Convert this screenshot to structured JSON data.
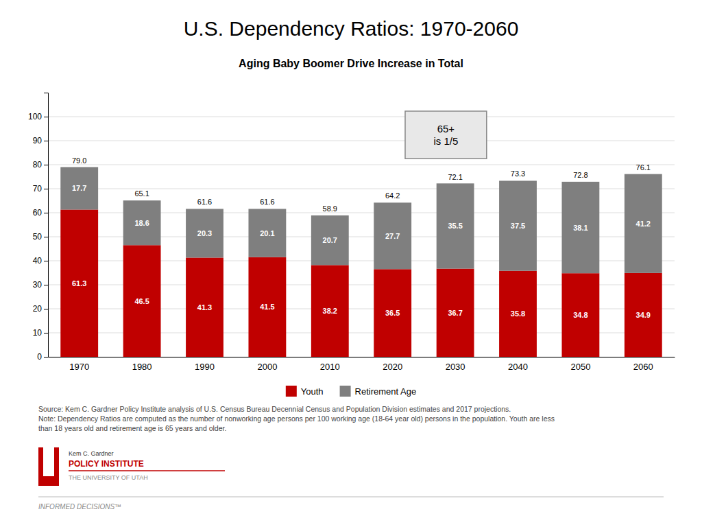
{
  "chart_data": {
    "type": "bar",
    "stacked": true,
    "title": "U.S. Dependency Ratios: 1970-2060",
    "subtitle": "Aging Baby Boomer Drive Increase in Total",
    "categories": [
      "1970",
      "1980",
      "1990",
      "2000",
      "2010",
      "2020",
      "2030",
      "2040",
      "2050",
      "2060"
    ],
    "series": [
      {
        "name": "Youth",
        "color": "#C00000",
        "values": [
          61.3,
          46.5,
          41.3,
          41.5,
          38.2,
          36.5,
          36.7,
          35.8,
          34.8,
          34.9
        ]
      },
      {
        "name": "Retirement Age",
        "color": "#7F7F7F",
        "values": [
          17.7,
          18.6,
          20.3,
          20.1,
          20.7,
          27.7,
          35.5,
          37.5,
          38.1,
          41.2
        ]
      }
    ],
    "totals": {
      "values": [
        79.0,
        65.1,
        61.6,
        61.6,
        58.9,
        64.2,
        72.1,
        73.3,
        72.8,
        76.1
      ],
      "value_labels": [
        "79.0",
        "65.1",
        "61.6",
        "61.6",
        "58.9",
        "64.2",
        "72.1",
        "73.3",
        "72.8",
        "76.1"
      ]
    },
    "data_labels": true,
    "ylim": [
      0,
      110
    ],
    "yticks": [
      0,
      10,
      20,
      30,
      40,
      50,
      60,
      70,
      80,
      90,
      100
    ],
    "grid": true,
    "legend": "bottom",
    "annotation": "65+\nis 1/5",
    "source": [
      "Source: Kem C. Gardner Policy Institute analysis of U.S. Census Bureau Decennial Census and Population Division estimates and 2017 projections.",
      "Note: Dependency Ratios are computed as the number of nonworking age persons per 100 working age (18-64 year old) persons in the population. Youth are less",
      "than 18 years old and retirement age is 65 years and older."
    ],
    "logo_text": [
      "Kem C. Gardner",
      "POLICY INSTITUTE",
      "THE UNIVERSITY OF UTAH"
    ],
    "footer": "INFORMED DECISIONS™"
  }
}
